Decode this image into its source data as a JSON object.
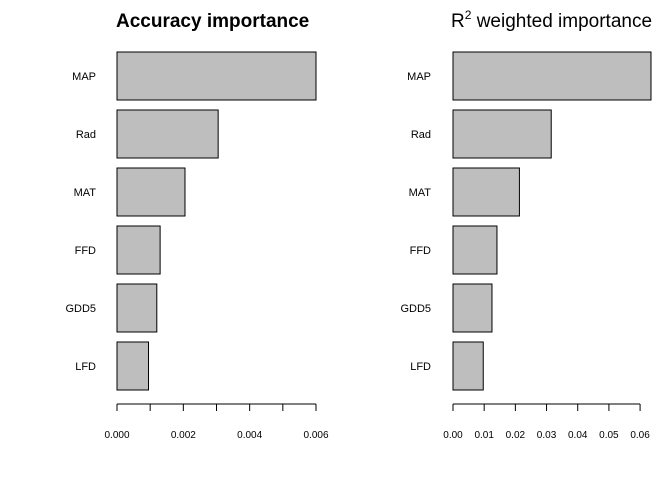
{
  "chart_data": [
    {
      "type": "bar",
      "orientation": "horizontal",
      "title": "Accuracy importance",
      "title_bold": true,
      "categories": [
        "MAP",
        "Rad",
        "MAT",
        "FFD",
        "GDD5",
        "LFD"
      ],
      "values": [
        0.006,
        0.00305,
        0.00205,
        0.0013,
        0.0012,
        0.00095
      ],
      "xlim": [
        0,
        0.006
      ],
      "xticks": [
        0,
        0.001,
        0.002,
        0.003,
        0.004,
        0.005,
        0.006
      ],
      "xtick_labels": [
        "0.000",
        "",
        "0.002",
        "",
        "0.004",
        "",
        "0.006"
      ],
      "xlabel": "",
      "ylabel": "",
      "grid": false,
      "bar_color": "#bebebe",
      "edge_color": "#000000"
    },
    {
      "type": "bar",
      "orientation": "horizontal",
      "title": "R",
      "title_sup": "2",
      "title_rest": " weighted importance",
      "title_bold": false,
      "categories": [
        "MAP",
        "Rad",
        "MAT",
        "FFD",
        "GDD5",
        "LFD"
      ],
      "values": [
        0.0635,
        0.0315,
        0.0213,
        0.0141,
        0.0125,
        0.0097
      ],
      "xlim": [
        0,
        0.0635
      ],
      "xticks": [
        0,
        0.01,
        0.02,
        0.03,
        0.04,
        0.05,
        0.06
      ],
      "xtick_labels": [
        "0.00",
        "0.01",
        "0.02",
        "0.03",
        "0.04",
        "0.05",
        "0.06"
      ],
      "xlabel": "",
      "ylabel": "",
      "grid": false,
      "bar_color": "#bebebe",
      "edge_color": "#000000"
    }
  ]
}
